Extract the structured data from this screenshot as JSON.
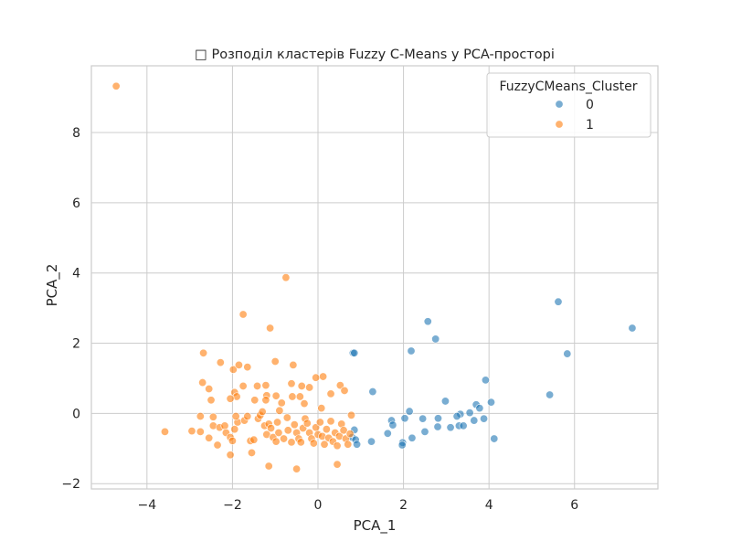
{
  "chart_data": {
    "type": "scatter",
    "title": "□ Розподіл кластерів Fuzzy C-Means у PCA-просторі",
    "xlabel": "PCA_1",
    "ylabel": "PCA_2",
    "xlim": [
      -5.3,
      7.95
    ],
    "ylim": [
      -2.15,
      9.9
    ],
    "xticks": [
      -4,
      -2,
      0,
      2,
      4,
      6
    ],
    "yticks": [
      -2,
      0,
      2,
      4,
      6,
      8
    ],
    "grid": true,
    "legend": {
      "title": "FuzzyCMeans_Cluster",
      "position": "top-right"
    },
    "series": [
      {
        "name": "0",
        "color": "#1f77b4",
        "points": [
          [
            0.82,
            1.72
          ],
          [
            0.85,
            1.72
          ],
          [
            1.28,
            0.62
          ],
          [
            2.18,
            1.78
          ],
          [
            2.57,
            2.62
          ],
          [
            2.75,
            2.12
          ],
          [
            3.92,
            0.95
          ],
          [
            5.62,
            3.18
          ],
          [
            5.83,
            1.7
          ],
          [
            7.35,
            2.43
          ],
          [
            5.42,
            0.53
          ],
          [
            4.05,
            0.32
          ],
          [
            3.7,
            0.25
          ],
          [
            3.78,
            0.15
          ],
          [
            3.55,
            0.02
          ],
          [
            3.33,
            -0.02
          ],
          [
            2.98,
            0.35
          ],
          [
            2.14,
            0.06
          ],
          [
            2.03,
            -0.14
          ],
          [
            1.72,
            -0.2
          ],
          [
            1.75,
            -0.33
          ],
          [
            2.45,
            -0.15
          ],
          [
            2.81,
            -0.14
          ],
          [
            3.1,
            -0.4
          ],
          [
            3.3,
            -0.35
          ],
          [
            3.4,
            -0.35
          ],
          [
            3.65,
            -0.2
          ],
          [
            3.88,
            -0.15
          ],
          [
            2.5,
            -0.52
          ],
          [
            2.8,
            -0.38
          ],
          [
            1.63,
            -0.57
          ],
          [
            2.2,
            -0.7
          ],
          [
            1.98,
            -0.83
          ],
          [
            1.97,
            -0.9
          ],
          [
            1.25,
            -0.8
          ],
          [
            4.12,
            -0.72
          ],
          [
            0.85,
            -0.47
          ],
          [
            0.8,
            -0.68
          ],
          [
            0.88,
            -0.75
          ],
          [
            0.91,
            -0.88
          ],
          [
            3.25,
            -0.08
          ]
        ]
      },
      {
        "name": "1",
        "color": "#ff7f0e",
        "points": [
          [
            -4.72,
            9.32
          ],
          [
            -0.75,
            3.87
          ],
          [
            -1.75,
            2.82
          ],
          [
            -1.12,
            2.43
          ],
          [
            -2.68,
            1.72
          ],
          [
            -2.28,
            1.45
          ],
          [
            -1.98,
            1.25
          ],
          [
            -1.85,
            1.38
          ],
          [
            -1.65,
            1.32
          ],
          [
            -1.0,
            1.48
          ],
          [
            -0.58,
            1.38
          ],
          [
            -2.7,
            0.88
          ],
          [
            -2.55,
            0.7
          ],
          [
            -1.95,
            0.6
          ],
          [
            -1.9,
            0.48
          ],
          [
            -1.75,
            0.78
          ],
          [
            -1.42,
            0.78
          ],
          [
            -1.22,
            0.8
          ],
          [
            -1.2,
            0.51
          ],
          [
            -0.98,
            0.5
          ],
          [
            -0.62,
            0.85
          ],
          [
            -0.6,
            0.48
          ],
          [
            -0.38,
            0.78
          ],
          [
            -0.2,
            0.74
          ],
          [
            -0.05,
            1.02
          ],
          [
            0.12,
            1.05
          ],
          [
            -2.05,
            0.42
          ],
          [
            -2.5,
            0.38
          ],
          [
            -1.48,
            0.38
          ],
          [
            -1.22,
            0.38
          ],
          [
            -0.85,
            0.3
          ],
          [
            -0.42,
            0.48
          ],
          [
            -0.32,
            0.28
          ],
          [
            0.08,
            0.15
          ],
          [
            0.3,
            0.56
          ],
          [
            0.52,
            0.8
          ],
          [
            0.62,
            0.65
          ],
          [
            -3.58,
            -0.52
          ],
          [
            -2.95,
            -0.5
          ],
          [
            -2.75,
            -0.08
          ],
          [
            -2.45,
            -0.1
          ],
          [
            -2.45,
            -0.35
          ],
          [
            -2.3,
            -0.4
          ],
          [
            -2.18,
            -0.35
          ],
          [
            -2.15,
            -0.55
          ],
          [
            -2.05,
            -0.68
          ],
          [
            -2.0,
            -0.78
          ],
          [
            -1.95,
            -0.45
          ],
          [
            -1.88,
            -0.25
          ],
          [
            -1.92,
            -0.08
          ],
          [
            -1.72,
            -0.2
          ],
          [
            -1.65,
            -0.08
          ],
          [
            -1.58,
            -0.78
          ],
          [
            -1.5,
            -0.75
          ],
          [
            -1.4,
            -0.15
          ],
          [
            -1.35,
            -0.05
          ],
          [
            -1.3,
            0.05
          ],
          [
            -1.25,
            -0.35
          ],
          [
            -1.2,
            -0.6
          ],
          [
            -1.15,
            -0.3
          ],
          [
            -1.1,
            -0.42
          ],
          [
            -1.05,
            -0.68
          ],
          [
            -0.98,
            -0.8
          ],
          [
            -0.95,
            -0.25
          ],
          [
            -0.92,
            -0.55
          ],
          [
            -0.9,
            0.08
          ],
          [
            -0.8,
            -0.72
          ],
          [
            -0.72,
            -0.12
          ],
          [
            -0.7,
            -0.48
          ],
          [
            -0.62,
            -0.82
          ],
          [
            -0.55,
            -0.32
          ],
          [
            -0.5,
            -0.55
          ],
          [
            -0.45,
            -0.72
          ],
          [
            -0.4,
            -0.82
          ],
          [
            -0.35,
            -0.42
          ],
          [
            -0.3,
            -0.15
          ],
          [
            -0.25,
            -0.28
          ],
          [
            -0.2,
            -0.55
          ],
          [
            -0.15,
            -0.72
          ],
          [
            -0.1,
            -0.85
          ],
          [
            -0.05,
            -0.4
          ],
          [
            0.0,
            -0.6
          ],
          [
            0.05,
            -0.25
          ],
          [
            0.1,
            -0.65
          ],
          [
            0.15,
            -0.88
          ],
          [
            0.2,
            -0.45
          ],
          [
            0.25,
            -0.7
          ],
          [
            0.3,
            -0.22
          ],
          [
            0.35,
            -0.8
          ],
          [
            0.4,
            -0.55
          ],
          [
            0.45,
            -0.92
          ],
          [
            0.5,
            -0.65
          ],
          [
            0.55,
            -0.3
          ],
          [
            0.6,
            -0.48
          ],
          [
            0.65,
            -0.72
          ],
          [
            0.7,
            -0.88
          ],
          [
            0.75,
            -0.58
          ],
          [
            -1.55,
            -1.12
          ],
          [
            -1.15,
            -1.5
          ],
          [
            -0.5,
            -1.58
          ],
          [
            0.45,
            -1.45
          ],
          [
            -2.05,
            -1.18
          ],
          [
            -2.35,
            -0.9
          ],
          [
            -2.55,
            -0.7
          ],
          [
            -2.75,
            -0.52
          ],
          [
            0.78,
            -0.05
          ]
        ]
      }
    ]
  }
}
